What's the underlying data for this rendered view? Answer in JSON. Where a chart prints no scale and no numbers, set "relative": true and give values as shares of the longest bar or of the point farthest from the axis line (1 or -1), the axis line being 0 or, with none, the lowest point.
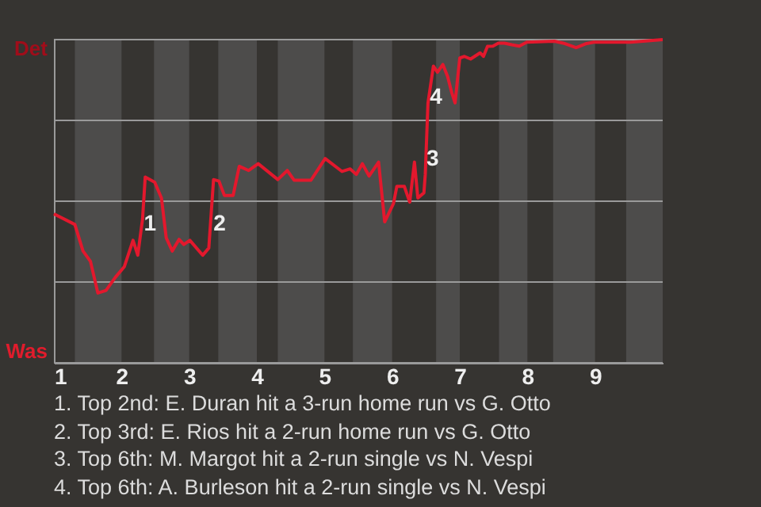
{
  "chart_data": {
    "type": "line",
    "relative": true,
    "x": [
      1,
      1.31,
      1.43,
      1.54,
      1.65,
      1.77,
      1.91,
      2.04,
      2.17,
      2.24,
      2.31,
      2.35,
      2.49,
      2.59,
      2.66,
      2.75,
      2.85,
      2.92,
      3.01,
      3.2,
      3.29,
      3.36,
      3.44,
      3.52,
      3.65,
      3.74,
      3.88,
      4.02,
      4.31,
      4.45,
      4.55,
      4.8,
      5.01,
      5.26,
      5.38,
      5.47,
      5.56,
      5.66,
      5.8,
      5.89,
      6.02,
      6.07,
      6.18,
      6.26,
      6.33,
      6.38,
      6.47,
      6.49,
      6.53,
      6.61,
      6.67,
      6.75,
      6.82,
      6.88,
      6.93,
      7,
      7.07,
      7.16,
      7.3,
      7.35,
      7.41,
      7.49,
      7.57,
      7.66,
      7.77,
      7.88,
      7.99,
      8.4,
      8.53,
      8.72,
      8.86,
      8.98,
      9.53,
      10
    ],
    "series": [
      {
        "color": "#e3182d",
        "values": [
          0.461,
          0.428,
          0.346,
          0.314,
          0.216,
          0.224,
          0.265,
          0.297,
          0.379,
          0.333,
          0.444,
          0.575,
          0.559,
          0.51,
          0.387,
          0.346,
          0.382,
          0.366,
          0.379,
          0.333,
          0.355,
          0.567,
          0.562,
          0.518,
          0.518,
          0.608,
          0.595,
          0.616,
          0.567,
          0.595,
          0.565,
          0.565,
          0.632,
          0.592,
          0.6,
          0.583,
          0.616,
          0.578,
          0.621,
          0.436,
          0.493,
          0.546,
          0.546,
          0.497,
          0.621,
          0.51,
          0.526,
          0.583,
          0.804,
          0.918,
          0.899,
          0.923,
          0.886,
          0.837,
          0.804,
          0.943,
          0.948,
          0.94,
          0.959,
          0.948,
          0.979,
          0.98,
          0.989,
          0.989,
          0.984,
          0.98,
          0.992,
          0.995,
          0.989,
          0.975,
          0.987,
          0.992,
          0.992,
          1
        ]
      }
    ],
    "xlim": [
      1,
      10
    ],
    "xticks": [
      1,
      2,
      3,
      4,
      5,
      6,
      7,
      8,
      9
    ],
    "grid": "y",
    "bands": [
      {
        "axis": "x",
        "from": 1.31,
        "to": 2,
        "color": "#4d4c4b"
      },
      {
        "axis": "x",
        "from": 2.48,
        "to": 3,
        "color": "#4d4c4b"
      },
      {
        "axis": "x",
        "from": 3.43,
        "to": 4,
        "color": "#4d4c4b"
      },
      {
        "axis": "x",
        "from": 4.31,
        "to": 5,
        "color": "#4d4c4b"
      },
      {
        "axis": "x",
        "from": 5.42,
        "to": 6,
        "color": "#4d4c4b"
      },
      {
        "axis": "x",
        "from": 6.65,
        "to": 7,
        "color": "#4d4c4b"
      },
      {
        "axis": "x",
        "from": 7.58,
        "to": 8,
        "color": "#4d4c4b"
      },
      {
        "axis": "x",
        "from": 8.38,
        "to": 9,
        "color": "#4d4c4b"
      },
      {
        "axis": "x",
        "from": 9.46,
        "to": 10,
        "color": "#4d4c4b"
      }
    ],
    "annotations": [
      "Det",
      "Was",
      {
        "text": "1",
        "x": 2.42,
        "y": 0.43
      },
      {
        "text": "2",
        "x": 3.45,
        "y": 0.43
      },
      {
        "text": "3",
        "x": 6.6,
        "y": 0.63
      },
      {
        "text": "4",
        "x": 6.65,
        "y": 0.82
      },
      "1. Top 2nd: E. Duran hit a 3-run home run vs G. Otto",
      "2. Top 3rd: E. Rios hit a 2-run home run vs G. Otto",
      "3. Top 6th: M. Margot hit a 2-run single vs N. Vespi",
      "4. Top 6th: A. Burleson hit a 2-run single vs N. Vespi"
    ]
  }
}
